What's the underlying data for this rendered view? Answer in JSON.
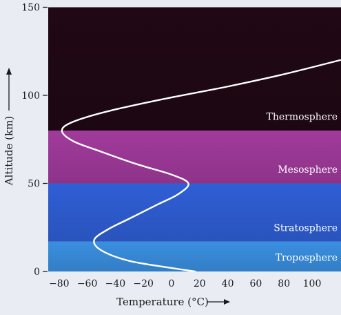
{
  "chart_data": {
    "type": "line",
    "title": "",
    "xlabel": "Temperature (°C)",
    "ylabel": "Altitude (km)",
    "xlim": [
      -90,
      110
    ],
    "ylim": [
      0,
      150
    ],
    "x_ticks": [
      -80,
      -60,
      -40,
      -20,
      0,
      20,
      40,
      60,
      80,
      100
    ],
    "y_ticks": [
      0,
      50,
      100,
      150
    ],
    "layers": [
      {
        "name": "Troposphere",
        "from_km": 0,
        "to_km": 17,
        "color": "#3a8fe0"
      },
      {
        "name": "Stratosphere",
        "from_km": 17,
        "to_km": 50,
        "color": "#2f5fd6"
      },
      {
        "name": "Mesosphere",
        "from_km": 50,
        "to_km": 80,
        "color": "#a13a9c"
      },
      {
        "name": "Thermosphere",
        "from_km": 80,
        "to_km": 150,
        "color": "#200814"
      }
    ],
    "series": [
      {
        "color": "#ffffff",
        "points": [
          {
            "x": 17,
            "y": 0
          },
          {
            "x": 0,
            "y": 2
          },
          {
            "x": -30,
            "y": 6
          },
          {
            "x": -50,
            "y": 12
          },
          {
            "x": -55,
            "y": 18
          },
          {
            "x": -45,
            "y": 24
          },
          {
            "x": -30,
            "y": 30
          },
          {
            "x": -10,
            "y": 38
          },
          {
            "x": 5,
            "y": 44
          },
          {
            "x": 12,
            "y": 50
          },
          {
            "x": 0,
            "y": 55
          },
          {
            "x": -25,
            "y": 61
          },
          {
            "x": -50,
            "y": 68
          },
          {
            "x": -70,
            "y": 74
          },
          {
            "x": -78,
            "y": 80
          },
          {
            "x": -70,
            "y": 85
          },
          {
            "x": -45,
            "y": 91
          },
          {
            "x": -5,
            "y": 98
          },
          {
            "x": 40,
            "y": 105
          },
          {
            "x": 80,
            "y": 112
          },
          {
            "x": 120,
            "y": 120
          }
        ]
      }
    ]
  }
}
